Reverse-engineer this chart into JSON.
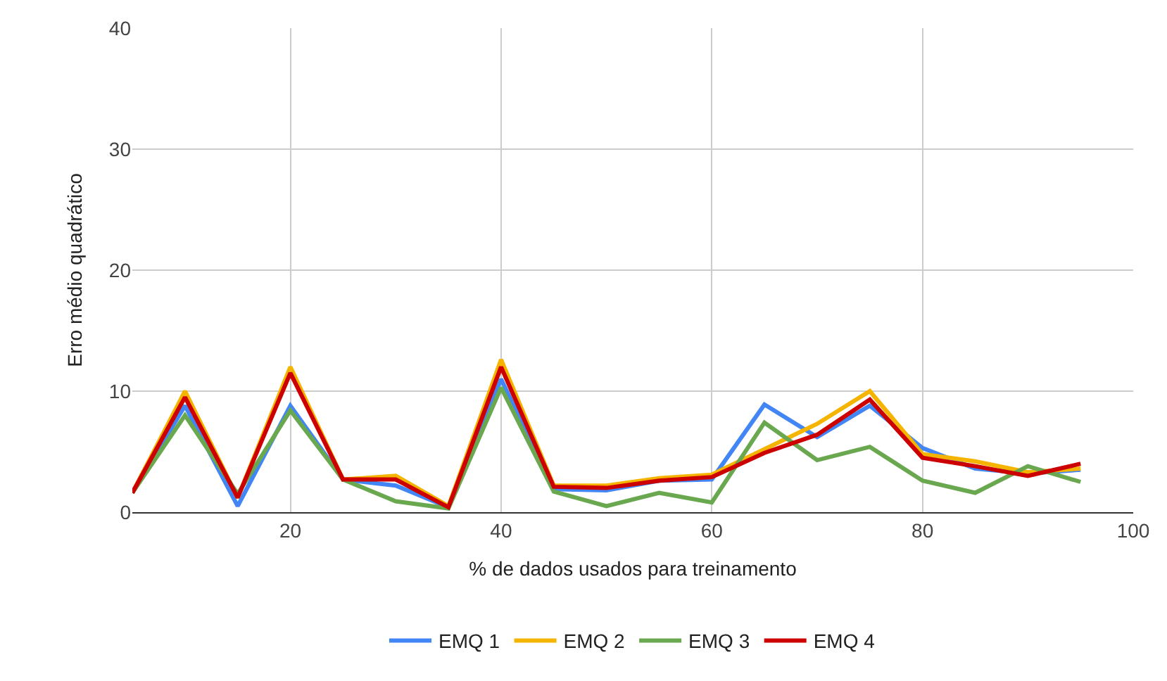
{
  "chart_data": {
    "type": "line",
    "xlabel": "% de dados usados para treinamento",
    "ylabel": "Erro médio quadrático",
    "x": [
      5,
      10,
      15,
      20,
      25,
      30,
      35,
      40,
      45,
      50,
      55,
      60,
      65,
      70,
      75,
      80,
      85,
      90,
      95
    ],
    "xlim": [
      5,
      100
    ],
    "xticks": [
      20,
      40,
      60,
      80,
      100
    ],
    "ylim": [
      0,
      40
    ],
    "yticks": [
      0,
      10,
      20,
      30,
      40
    ],
    "grid": true,
    "legend": "bottom",
    "marker": "none",
    "line_style": "solid",
    "series": [
      {
        "name": "EMQ 1",
        "color": "#4285f4",
        "values": [
          1.6,
          8.8,
          0.5,
          8.8,
          2.7,
          2.2,
          0.4,
          11,
          1.9,
          1.8,
          2.6,
          2.7,
          8.9,
          6.2,
          8.8,
          5.3,
          3.6,
          3.2,
          3.5
        ]
      },
      {
        "name": "EMQ 2",
        "color": "#f4b400",
        "values": [
          1.6,
          10,
          1.2,
          12,
          2.7,
          3.0,
          0.5,
          12.6,
          2.2,
          2.2,
          2.8,
          3.1,
          5.2,
          7.3,
          10,
          4.8,
          4.2,
          3.3,
          3.6
        ]
      },
      {
        "name": "EMQ 3",
        "color": "#6aa84f",
        "values": [
          1.6,
          8,
          1.5,
          8.4,
          2.7,
          0.9,
          0.3,
          10.3,
          1.7,
          0.5,
          1.6,
          0.8,
          7.4,
          4.3,
          5.4,
          2.6,
          1.6,
          3.8,
          2.5
        ]
      },
      {
        "name": "EMQ 4",
        "color": "#cc0000",
        "values": [
          1.6,
          9.5,
          1.2,
          11.5,
          2.7,
          2.7,
          0.4,
          12,
          2.1,
          2.0,
          2.6,
          2.9,
          4.9,
          6.4,
          9.3,
          4.5,
          3.8,
          3.0,
          4.0
        ]
      }
    ]
  }
}
